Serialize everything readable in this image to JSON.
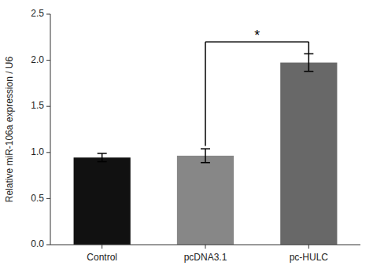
{
  "chart_data": {
    "type": "bar",
    "categories": [
      "Control",
      "pcDNA3.1",
      "pc-HULC"
    ],
    "values": [
      0.945,
      0.965,
      1.975
    ],
    "errors": [
      0.045,
      0.075,
      0.095
    ],
    "colors": [
      "#111111",
      "#878787",
      "#686868"
    ],
    "ylabel": "Relative miR-106a expression / U6",
    "ylim": [
      0,
      2.5
    ],
    "yticks": [
      {
        "value": 0,
        "label": "0.0"
      },
      0.5,
      {
        "value": 1,
        "label": "1.0"
      },
      1.5,
      {
        "value": 2,
        "label": "2.0"
      },
      2.5
    ],
    "grid": false,
    "annotations": [
      {
        "text": "*",
        "from": "pcDNA3.1",
        "to": "pc-HULC",
        "y": 2.2,
        "left_y": 1.07,
        "right_y": 2.07
      }
    ]
  }
}
